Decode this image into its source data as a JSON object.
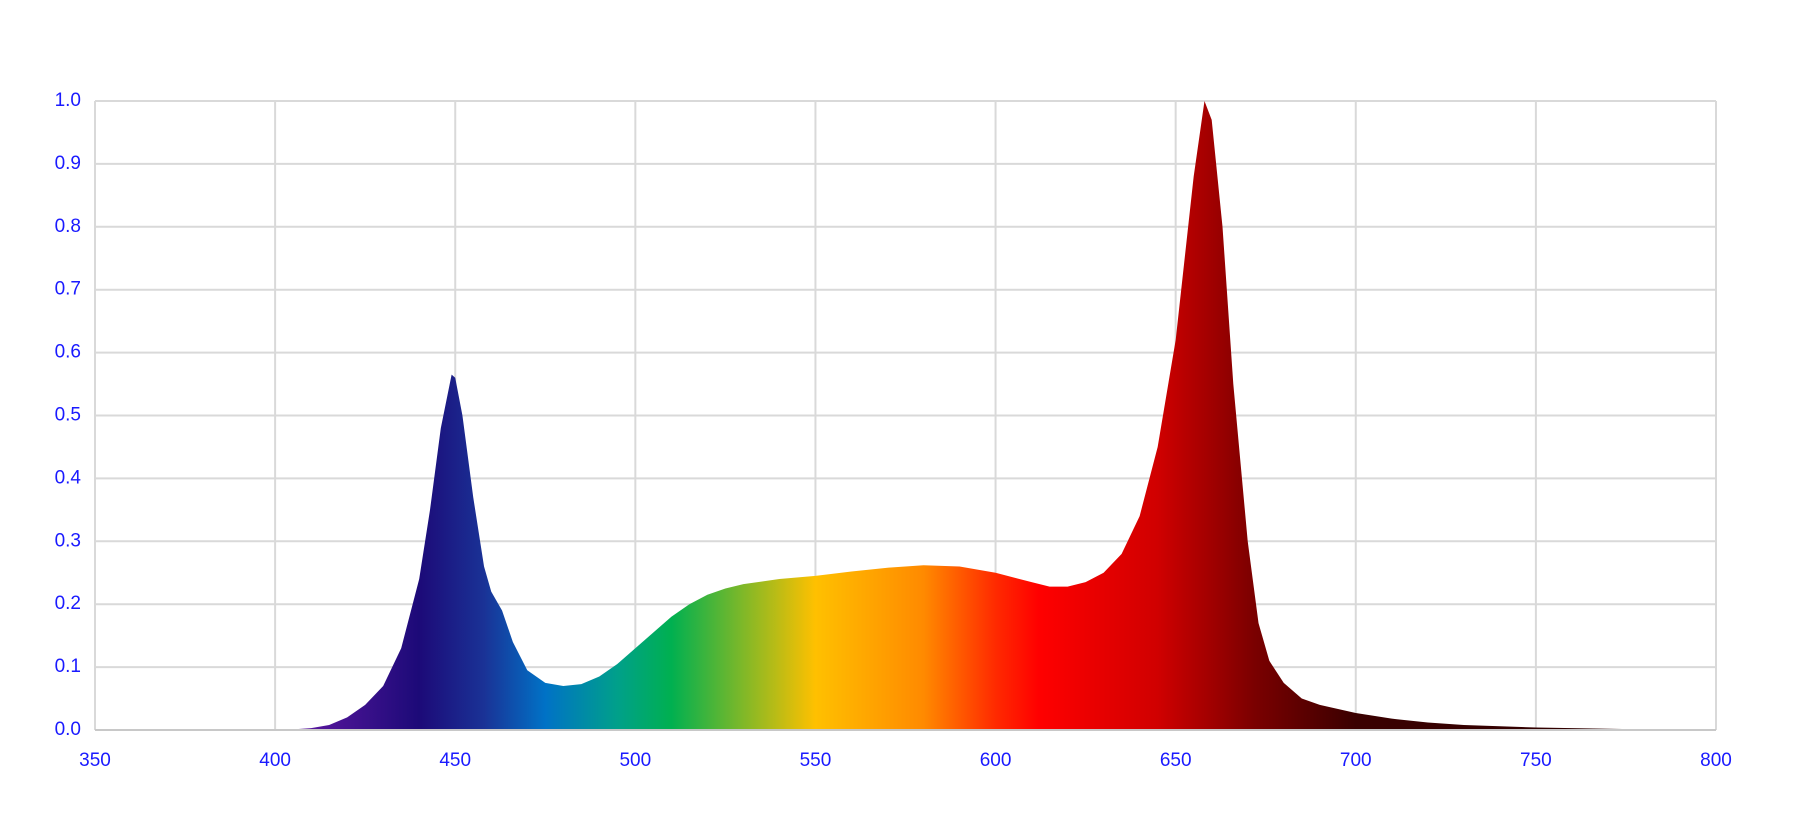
{
  "chart_data": {
    "type": "area",
    "x": [
      350,
      360,
      370,
      380,
      390,
      400,
      405,
      410,
      415,
      420,
      425,
      430,
      435,
      440,
      443,
      446,
      449,
      450,
      452,
      455,
      458,
      460,
      463,
      466,
      470,
      475,
      480,
      485,
      490,
      495,
      500,
      505,
      510,
      515,
      520,
      525,
      530,
      540,
      550,
      560,
      570,
      580,
      590,
      600,
      610,
      615,
      620,
      625,
      630,
      635,
      640,
      645,
      650,
      655,
      658,
      660,
      663,
      666,
      670,
      673,
      676,
      680,
      685,
      690,
      700,
      710,
      720,
      730,
      740,
      750,
      760,
      770,
      780,
      790,
      800
    ],
    "values": [
      0,
      0,
      0,
      0,
      0,
      0,
      0.001,
      0.003,
      0.008,
      0.02,
      0.04,
      0.07,
      0.13,
      0.24,
      0.35,
      0.48,
      0.565,
      0.56,
      0.5,
      0.37,
      0.26,
      0.22,
      0.19,
      0.14,
      0.095,
      0.075,
      0.07,
      0.073,
      0.085,
      0.105,
      0.13,
      0.155,
      0.18,
      0.2,
      0.215,
      0.225,
      0.232,
      0.24,
      0.245,
      0.252,
      0.258,
      0.262,
      0.26,
      0.25,
      0.235,
      0.228,
      0.228,
      0.235,
      0.25,
      0.28,
      0.34,
      0.45,
      0.62,
      0.88,
      1.0,
      0.97,
      0.8,
      0.55,
      0.3,
      0.17,
      0.11,
      0.075,
      0.05,
      0.04,
      0.027,
      0.018,
      0.012,
      0.008,
      0.006,
      0.004,
      0.003,
      0.002,
      0.001,
      0.001,
      0
    ],
    "gradient": [
      {
        "x": 400,
        "color": "#6a1aa8"
      },
      {
        "x": 440,
        "color": "#1c0a78"
      },
      {
        "x": 458,
        "color": "#1a3296"
      },
      {
        "x": 475,
        "color": "#0072c6"
      },
      {
        "x": 495,
        "color": "#00a08a"
      },
      {
        "x": 510,
        "color": "#00b050"
      },
      {
        "x": 550,
        "color": "#ffc000"
      },
      {
        "x": 580,
        "color": "#ff8a00"
      },
      {
        "x": 600,
        "color": "#ff2a00"
      },
      {
        "x": 612,
        "color": "#ff0000"
      },
      {
        "x": 645,
        "color": "#d00000"
      },
      {
        "x": 672,
        "color": "#7a0000"
      },
      {
        "x": 700,
        "color": "#3a0000"
      },
      {
        "x": 800,
        "color": "#2a0000"
      }
    ],
    "xlim": [
      350,
      800
    ],
    "xticks": [
      350,
      400,
      450,
      500,
      550,
      600,
      650,
      700,
      750,
      800
    ],
    "ylim": [
      0,
      1
    ],
    "yticks": [
      {
        "value": 0,
        "label": "0.0"
      },
      0.1,
      0.2,
      0.3,
      0.4,
      0.5,
      0.6,
      0.7,
      0.8,
      0.9,
      {
        "value": 1,
        "label": "1.0"
      }
    ],
    "grid": true,
    "tick_color": "#1a1aff",
    "grid_color": "#d9d9d9"
  }
}
